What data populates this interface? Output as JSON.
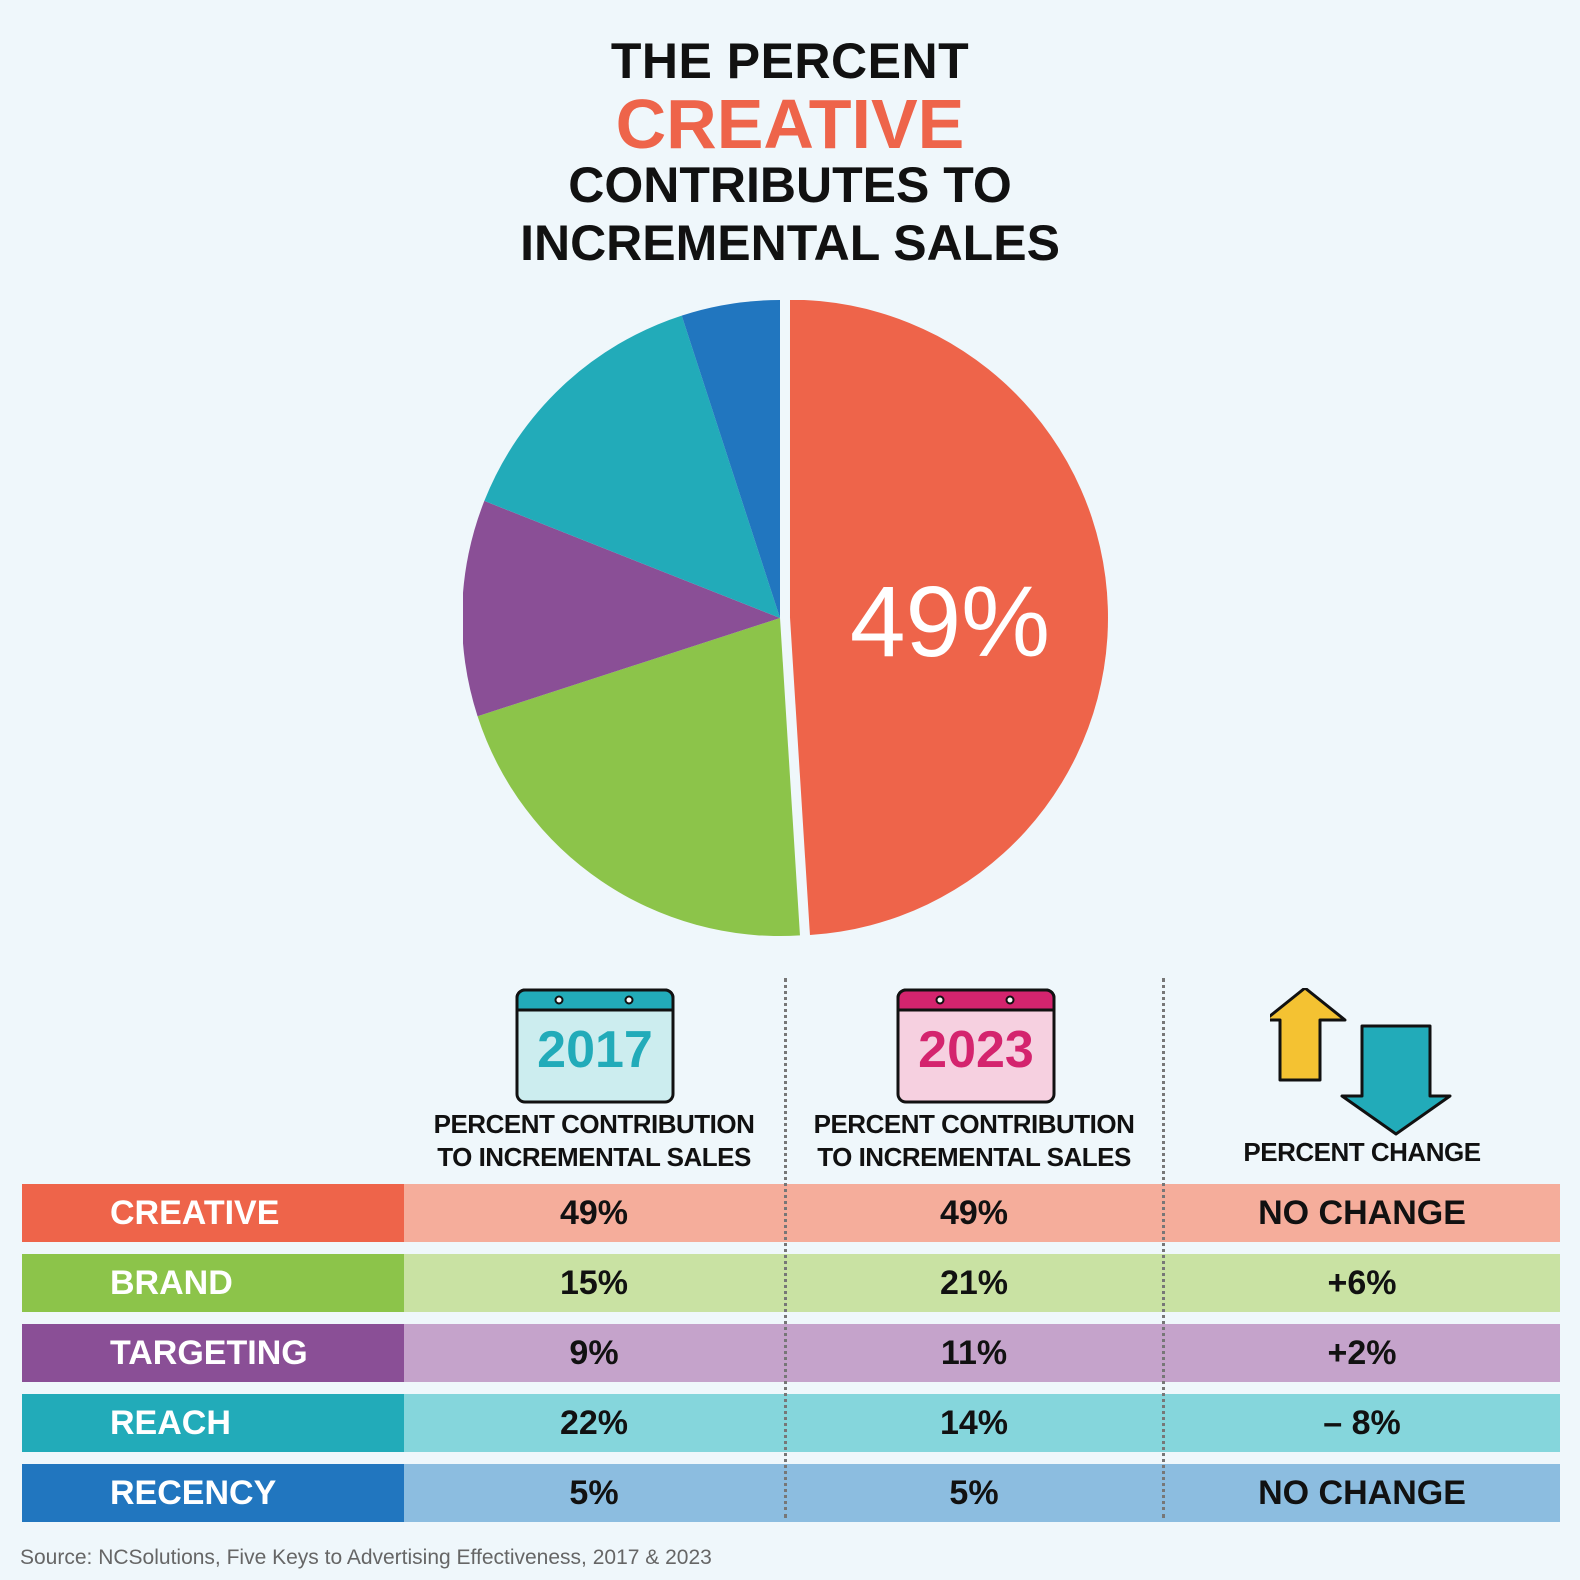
{
  "title": {
    "line1": "THE PERCENT",
    "line2": "CREATIVE",
    "line3": "CONTRIBUTES TO",
    "line4": "INCREMENTAL SALES"
  },
  "chart_data": {
    "type": "pie",
    "slices": [
      {
        "name": "CREATIVE",
        "value": 49,
        "color": "#ee644a"
      },
      {
        "name": "BRAND",
        "value": 21,
        "color": "#8cc44a"
      },
      {
        "name": "TARGETING",
        "value": 11,
        "color": "#8a4f96"
      },
      {
        "name": "REACH",
        "value": 14,
        "color": "#22abb9"
      },
      {
        "name": "RECENCY",
        "value": 5,
        "color": "#2176bf"
      }
    ],
    "data_label": "49%",
    "exploded": "CREATIVE"
  },
  "table": {
    "col1": {
      "year": "2017",
      "header_line1": "PERCENT CONTRIBUTION",
      "header_line2": "TO INCREMENTAL SALES",
      "color": "#22abb9"
    },
    "col2": {
      "year": "2023",
      "header_line1": "PERCENT CONTRIBUTION",
      "header_line2": "TO INCREMENTAL SALES",
      "color": "#d4246e"
    },
    "col3": {
      "header": "PERCENT CHANGE",
      "icon": "up-down-arrows-icon"
    },
    "rows": [
      {
        "label": "CREATIVE",
        "v2017": "49%",
        "v2023": "49%",
        "change": "NO CHANGE",
        "color": "#ee644a",
        "light": "#f5ad9b"
      },
      {
        "label": "BRAND",
        "v2017": "15%",
        "v2023": "21%",
        "change": "+6%",
        "color": "#8cc44a",
        "light": "#c9e2a3"
      },
      {
        "label": "TARGETING",
        "v2017": "9%",
        "v2023": "11%",
        "change": "+2%",
        "color": "#8a4f96",
        "light": "#c5a3cb"
      },
      {
        "label": "REACH",
        "v2017": "22%",
        "v2023": "14%",
        "change": "– 8%",
        "color": "#22abb9",
        "light": "#85d6dc"
      },
      {
        "label": "RECENCY",
        "v2017": "5%",
        "v2023": "5%",
        "change": "NO CHANGE",
        "color": "#2176bf",
        "light": "#8cbde0"
      }
    ]
  },
  "source": "Source: NCSolutions, Five Keys to Advertising Effectiveness, 2017 & 2023"
}
